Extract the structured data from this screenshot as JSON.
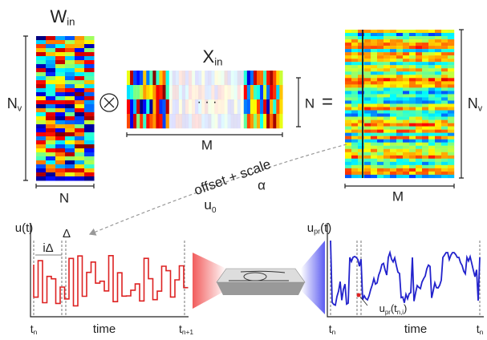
{
  "w_in": {
    "label": [
      {
        "text": "W"
      },
      {
        "text": "in",
        "sub": true
      }
    ],
    "rows": [
      {
        "text": "N"
      },
      {
        "text": "v",
        "sub": true
      }
    ],
    "cols": "N"
  },
  "operator_equals": "=",
  "x_in": {
    "label": [
      {
        "text": "X"
      },
      {
        "text": "in",
        "sub": true
      }
    ],
    "rows": "N",
    "cols": "M",
    "ellipsis": "· · ·"
  },
  "result": {
    "rows": [
      {
        "text": "N"
      },
      {
        "text": "v",
        "sub": true
      }
    ],
    "cols": "M"
  },
  "transform": {
    "text": "offset + scale",
    "offset": [
      {
        "text": "u"
      },
      {
        "text": "0",
        "sub": true
      }
    ],
    "scale": "α"
  },
  "input_plot": {
    "ylabel": "u(t)",
    "step": "iΔ",
    "delta": "Δ",
    "t_start": [
      {
        "text": "t"
      },
      {
        "text": "n",
        "sub": true
      }
    ],
    "xlabel": "time",
    "t_end": [
      {
        "text": "t"
      },
      {
        "text": "n+1",
        "sub": true
      }
    ]
  },
  "output_plot": {
    "ylabel": [
      {
        "text": "u"
      },
      {
        "text": "pr",
        "sub": true
      },
      {
        "text": "(t)"
      }
    ],
    "point": [
      {
        "text": "u"
      },
      {
        "text": "pr",
        "sub": true
      },
      {
        "text": "(t"
      },
      {
        "text": "n,i",
        "sub": true
      },
      {
        "text": ")"
      }
    ],
    "t_start": [
      {
        "text": "t"
      },
      {
        "text": "n",
        "sub": true
      }
    ],
    "xlabel": "time",
    "t_end": [
      {
        "text": "t"
      },
      {
        "text": "n",
        "sub": true
      }
    ]
  }
}
